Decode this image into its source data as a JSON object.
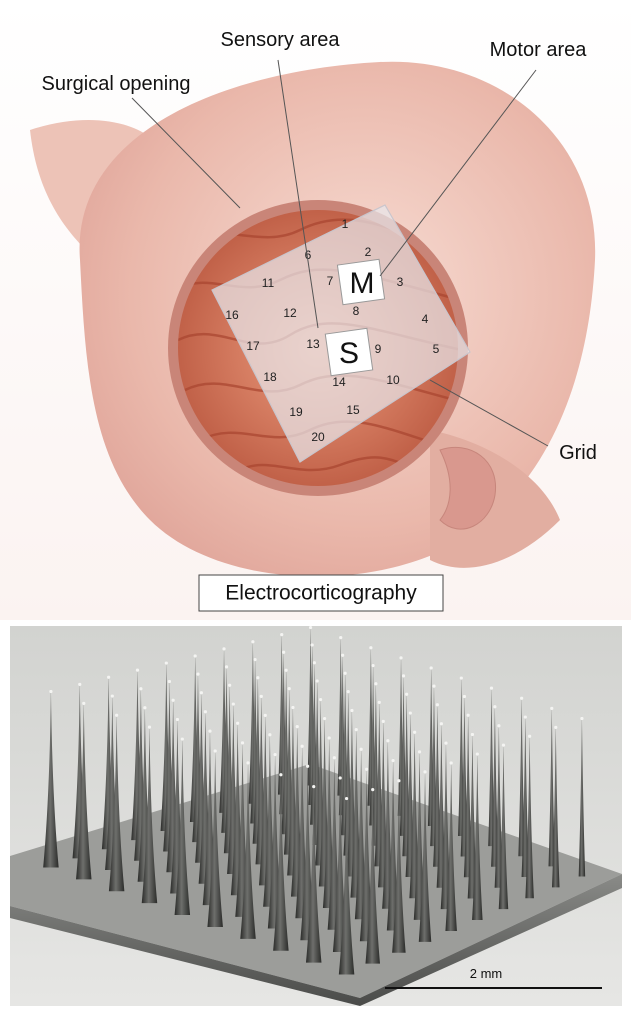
{
  "labels": {
    "sensory_area": "Sensory area",
    "motor_area": "Motor area",
    "surgical_opening": "Surgical opening",
    "grid": "Grid"
  },
  "caption": "Electrocorticography",
  "grid_markers": {
    "motor": "M",
    "sensory": "S"
  },
  "electrodes": [
    "1",
    "2",
    "3",
    "4",
    "5",
    "6",
    "7",
    "8",
    "9",
    "10",
    "11",
    "12",
    "13",
    "14",
    "15",
    "16",
    "17",
    "18",
    "19",
    "20"
  ],
  "scale_bar": "2 mm",
  "colors": {
    "skin": "#f0c4b8",
    "skin_shadow": "#d9988e",
    "brain": "#e28a6e",
    "brain_dark": "#b8553d",
    "grid_sheet": "#e8e6ea",
    "sem_bg": "#c9cac7",
    "needle": "#3e3f3d"
  }
}
